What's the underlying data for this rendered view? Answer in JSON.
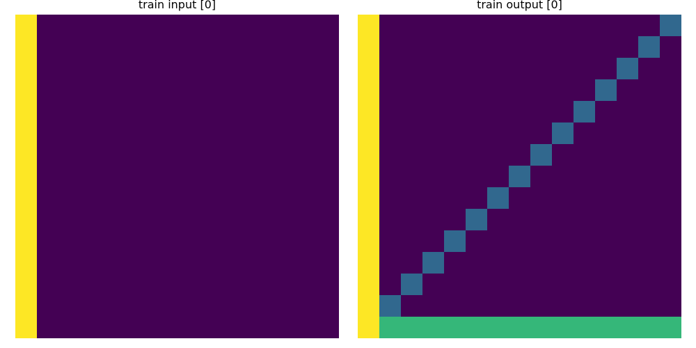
{
  "palette": {
    "0": "#440154",
    "1": "#31688e",
    "2": "#35b779",
    "3": "#fde725"
  },
  "panels": [
    {
      "title": "train input [0]",
      "rows": [
        "300000000000000",
        "300000000000000",
        "300000000000000",
        "300000000000000",
        "300000000000000",
        "300000000000000",
        "300000000000000",
        "300000000000000",
        "300000000000000",
        "300000000000000",
        "300000000000000",
        "300000000000000",
        "300000000000000",
        "300000000000000",
        "300000000000000"
      ]
    },
    {
      "title": "train output [0]",
      "rows": [
        "300000000000001",
        "300000000000010",
        "300000000000100",
        "300000000001000",
        "300000000010000",
        "300000000100000",
        "300000001000000",
        "300000010000000",
        "300000100000000",
        "300001000000000",
        "300010000000000",
        "300100000000000",
        "301000000000000",
        "310000000000000",
        "322222222222222"
      ]
    }
  ]
}
